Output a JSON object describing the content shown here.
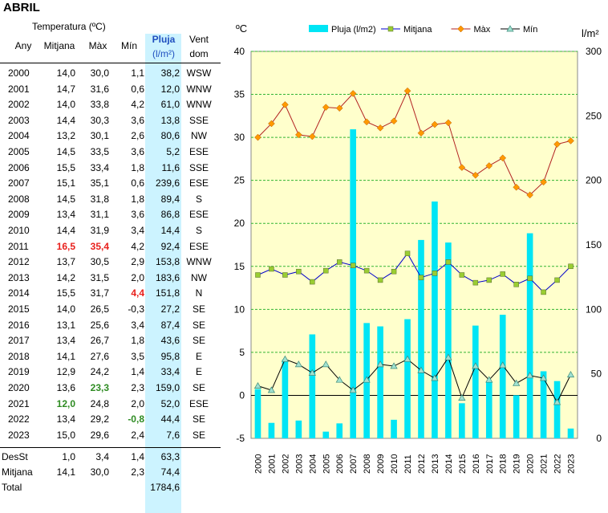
{
  "page_title": "ABRIL",
  "table": {
    "header_group": "Temperatura (ºC)",
    "headers": {
      "year": "Any",
      "mitjana": "Mitjana",
      "max": "Màx",
      "min": "Mín",
      "pluja": "Pluja",
      "pluja_unit": "(l/m²)",
      "vent": "Vent",
      "vent_sub": "dom"
    },
    "rows": [
      {
        "year": "2000",
        "mit": "14,0",
        "max": "30,0",
        "min": "1,1",
        "pl": "38,2",
        "wind": "WSW"
      },
      {
        "year": "2001",
        "mit": "14,7",
        "max": "31,6",
        "min": "0,6",
        "pl": "12,0",
        "wind": "WNW"
      },
      {
        "year": "2002",
        "mit": "14,0",
        "max": "33,8",
        "min": "4,2",
        "pl": "61,0",
        "wind": "WNW"
      },
      {
        "year": "2003",
        "mit": "14,4",
        "max": "30,3",
        "min": "3,6",
        "pl": "13,8",
        "wind": "SSE"
      },
      {
        "year": "2004",
        "mit": "13,2",
        "max": "30,1",
        "min": "2,6",
        "pl": "80,6",
        "wind": "NW"
      },
      {
        "year": "2005",
        "mit": "14,5",
        "max": "33,5",
        "min": "3,6",
        "pl": "5,2",
        "wind": "ESE"
      },
      {
        "year": "2006",
        "mit": "15,5",
        "max": "33,4",
        "min": "1,8",
        "pl": "11,6",
        "wind": "SSE"
      },
      {
        "year": "2007",
        "mit": "15,1",
        "max": "35,1",
        "min": "0,6",
        "pl": "239,6",
        "wind": "ESE"
      },
      {
        "year": "2008",
        "mit": "14,5",
        "max": "31,8",
        "min": "1,8",
        "pl": "89,4",
        "wind": "S"
      },
      {
        "year": "2009",
        "mit": "13,4",
        "max": "31,1",
        "min": "3,6",
        "pl": "86,8",
        "wind": "ESE"
      },
      {
        "year": "2010",
        "mit": "14,4",
        "max": "31,9",
        "min": "3,4",
        "pl": "14,4",
        "wind": "S"
      },
      {
        "year": "2011",
        "mit": "16,5",
        "max": "35,4",
        "min": "4,2",
        "pl": "92,4",
        "wind": "ESE"
      },
      {
        "year": "2012",
        "mit": "13,7",
        "max": "30,5",
        "min": "2,9",
        "pl": "153,8",
        "wind": "WNW"
      },
      {
        "year": "2013",
        "mit": "14,2",
        "max": "31,5",
        "min": "2,0",
        "pl": "183,6",
        "wind": "NW"
      },
      {
        "year": "2014",
        "mit": "15,5",
        "max": "31,7",
        "min": "4,4",
        "pl": "151,8",
        "wind": "N"
      },
      {
        "year": "2015",
        "mit": "14,0",
        "max": "26,5",
        "min": "-0,3",
        "pl": "27,2",
        "wind": "SE"
      },
      {
        "year": "2016",
        "mit": "13,1",
        "max": "25,6",
        "min": "3,4",
        "pl": "87,4",
        "wind": "SE"
      },
      {
        "year": "2017",
        "mit": "13,4",
        "max": "26,7",
        "min": "1,8",
        "pl": "43,6",
        "wind": "SE"
      },
      {
        "year": "2018",
        "mit": "14,1",
        "max": "27,6",
        "min": "3,5",
        "pl": "95,8",
        "wind": "E"
      },
      {
        "year": "2019",
        "mit": "12,9",
        "max": "24,2",
        "min": "1,4",
        "pl": "33,4",
        "wind": "E"
      },
      {
        "year": "2020",
        "mit": "13,6",
        "max": "23,3",
        "min": "2,3",
        "pl": "159,0",
        "wind": "SE"
      },
      {
        "year": "2021",
        "mit": "12,0",
        "max": "24,8",
        "min": "2,0",
        "pl": "52,0",
        "wind": "ESE"
      },
      {
        "year": "2022",
        "mit": "13,4",
        "max": "29,2",
        "min": "-0,8",
        "pl": "44,4",
        "wind": "SE"
      },
      {
        "year": "2023",
        "mit": "15,0",
        "max": "29,6",
        "min": "2,4",
        "pl": "7,6",
        "wind": "SE"
      }
    ],
    "highlights": {
      "red": [
        [
          11,
          "mit"
        ],
        [
          11,
          "max"
        ],
        [
          14,
          "min"
        ]
      ],
      "green": [
        [
          20,
          "max"
        ],
        [
          21,
          "mit"
        ],
        [
          22,
          "min"
        ]
      ]
    },
    "desst": {
      "label": "DesSt",
      "mit": "1,0",
      "max": "3,4",
      "min": "1,4",
      "pl": "63,3"
    },
    "mitjana": {
      "label": "Mitjana",
      "mit": "14,1",
      "max": "30,0",
      "min": "2,3",
      "pl": "74,4"
    },
    "total": {
      "label": "Total",
      "pl": "1784,6"
    },
    "highlight_colors": {
      "red": "#e8201c",
      "green": "#2e8b22",
      "pluja_bg": "#ccf3ff"
    }
  },
  "chart_data": {
    "type": "bar+line",
    "left_axis_label": "ºC",
    "right_axis_label": "l/m²",
    "ylim_left": [
      -5,
      40
    ],
    "ylim_right": [
      0,
      300
    ],
    "yticks_left": [
      -5,
      0,
      5,
      10,
      15,
      20,
      25,
      30,
      35,
      40
    ],
    "yticks_right": [
      0,
      50,
      100,
      150,
      200,
      250,
      300
    ],
    "plot_bg": "#ffffcc",
    "grid": "dashed horizontal, green",
    "legend_position": "top",
    "categories": [
      "2000",
      "2001",
      "2002",
      "2003",
      "2004",
      "2005",
      "2006",
      "2007",
      "2008",
      "2009",
      "2010",
      "2011",
      "2012",
      "2013",
      "2014",
      "2015",
      "2016",
      "2017",
      "2018",
      "2019",
      "2020",
      "2021",
      "2022",
      "2023"
    ],
    "series": [
      {
        "name": "Pluja (l/m2)",
        "type": "bar",
        "axis": "right",
        "color": "#00e5f5",
        "values": [
          38.2,
          12.0,
          61.0,
          13.8,
          80.6,
          5.2,
          11.6,
          239.6,
          89.4,
          86.8,
          14.4,
          92.4,
          153.8,
          183.6,
          151.8,
          27.2,
          87.4,
          43.6,
          95.8,
          33.4,
          159.0,
          52.0,
          44.4,
          7.6
        ]
      },
      {
        "name": "Mitjana",
        "type": "line",
        "axis": "left",
        "color": "#0000cc",
        "marker_color": "#9acd32",
        "values": [
          14.0,
          14.7,
          14.0,
          14.4,
          13.2,
          14.5,
          15.5,
          15.1,
          14.5,
          13.4,
          14.4,
          16.5,
          13.7,
          14.2,
          15.5,
          14.0,
          13.1,
          13.4,
          14.1,
          12.9,
          13.6,
          12.0,
          13.4,
          15.0
        ]
      },
      {
        "name": "Màx",
        "type": "line",
        "axis": "left",
        "color": "#b22222",
        "marker_color": "#ff9900",
        "values": [
          30.0,
          31.6,
          33.8,
          30.3,
          30.1,
          33.5,
          33.4,
          35.1,
          31.8,
          31.1,
          31.9,
          35.4,
          30.5,
          31.5,
          31.7,
          26.5,
          25.6,
          26.7,
          27.6,
          24.2,
          23.3,
          24.8,
          29.2,
          29.6
        ]
      },
      {
        "name": "Mín",
        "type": "line",
        "axis": "left",
        "color": "#000000",
        "marker_color": "#a0e0d0",
        "values": [
          1.1,
          0.6,
          4.2,
          3.6,
          2.6,
          3.6,
          1.8,
          0.6,
          1.8,
          3.6,
          3.4,
          4.2,
          2.9,
          2.0,
          4.4,
          -0.3,
          3.4,
          1.8,
          3.5,
          1.4,
          2.3,
          2.0,
          -0.8,
          2.4
        ]
      }
    ]
  }
}
